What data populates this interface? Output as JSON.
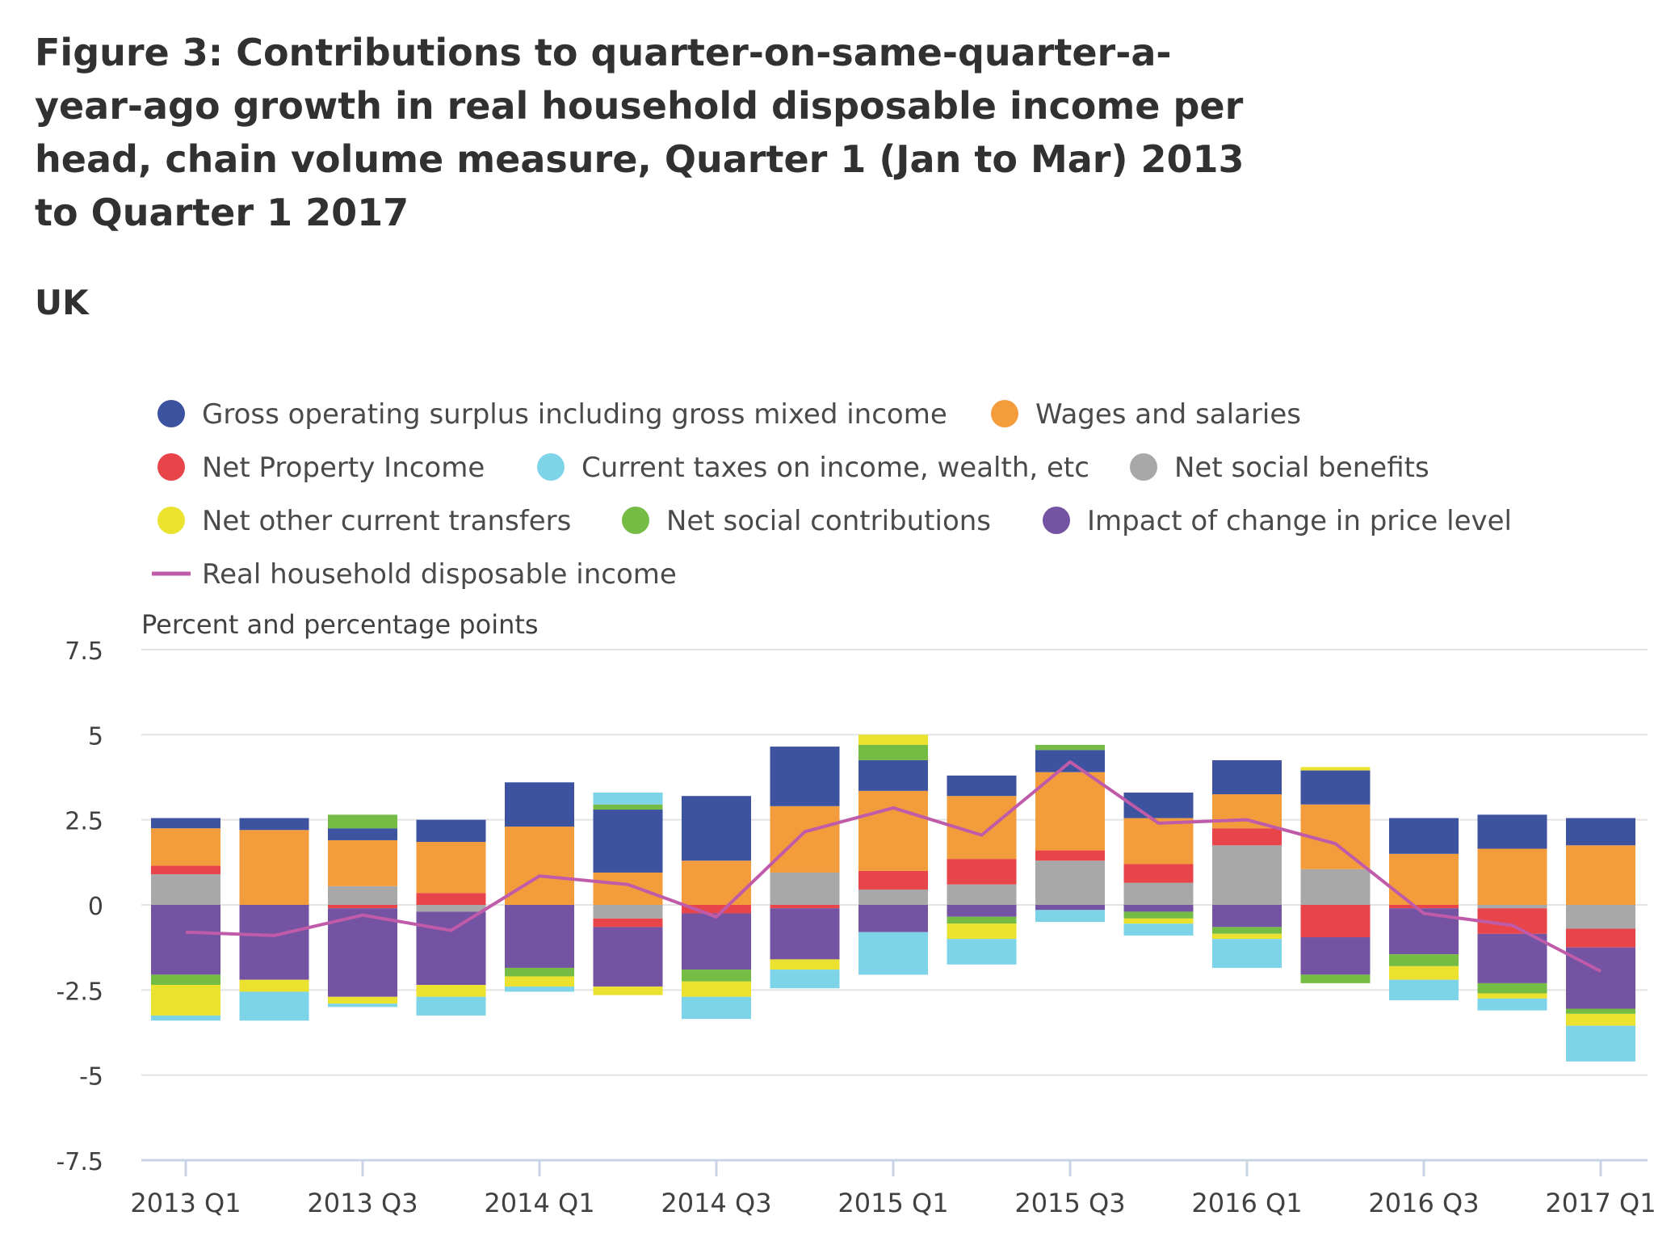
{
  "title": "Figure 3: Contributions to quarter-on-same-quarter-a-year-ago growth in real household disposable income per head, chain volume measure, Quarter 1 (Jan to Mar) 2013 to Quarter 1 2017",
  "subtitle": "UK",
  "chart_data": {
    "type": "bar",
    "stacked": true,
    "ylabel": "Percent and percentage points",
    "ylim": [
      -7.5,
      7.5
    ],
    "yticks": [
      7.5,
      5,
      2.5,
      0,
      -2.5,
      -5,
      -7.5
    ],
    "ytick_labels": [
      "7.5",
      "5",
      "2.5",
      "0",
      "-2.5",
      "-5",
      "-7.5"
    ],
    "categories": [
      "2013 Q1",
      "2013 Q2",
      "2013 Q3",
      "2013 Q4",
      "2014 Q1",
      "2014 Q2",
      "2014 Q3",
      "2014 Q4",
      "2015 Q1",
      "2015 Q2",
      "2015 Q3",
      "2015 Q4",
      "2016 Q1",
      "2016 Q2",
      "2016 Q3",
      "2016 Q4",
      "2017 Q1"
    ],
    "xtick_labels": [
      "2013 Q1",
      "2013 Q3",
      "2014 Q1",
      "2014 Q3",
      "2015 Q1",
      "2015 Q3",
      "2016 Q1",
      "2016 Q3",
      "2017 Q1"
    ],
    "series": [
      {
        "name": "Net social benefits",
        "color": "#a8a8a8",
        "values": [
          0.9,
          0,
          0.55,
          -0.2,
          0,
          -0.4,
          0,
          0.95,
          0.45,
          0.6,
          1.3,
          0.65,
          1.75,
          1.05,
          0,
          -0.1,
          -0.7
        ]
      },
      {
        "name": "Net Property Income",
        "color": "#e8454a",
        "values": [
          0.25,
          0,
          -0.1,
          0.35,
          0,
          -0.25,
          -0.25,
          -0.1,
          0.55,
          0.75,
          0.3,
          0.55,
          0.5,
          -0.95,
          -0.1,
          -0.75,
          -0.55
        ]
      },
      {
        "name": "Wages and salaries",
        "color": "#f39c3c",
        "values": [
          1.1,
          2.2,
          1.35,
          1.5,
          2.3,
          0.95,
          1.3,
          1.95,
          2.35,
          1.85,
          2.3,
          1.35,
          1.0,
          1.9,
          1.5,
          1.65,
          1.75
        ]
      },
      {
        "name": "Gross operating surplus including gross mixed income",
        "color": "#3d53a0",
        "values": [
          0.3,
          0.35,
          0.35,
          0.65,
          1.3,
          1.85,
          1.9,
          1.75,
          0.9,
          0.6,
          0.65,
          0.75,
          1.0,
          1.0,
          1.05,
          1.0,
          0.8
        ]
      },
      {
        "name": "Impact of change in price level",
        "color": "#7453a3",
        "values": [
          -2.05,
          -2.2,
          -2.6,
          -2.15,
          -1.85,
          -1.75,
          -1.65,
          -1.5,
          -0.8,
          -0.35,
          -0.15,
          -0.2,
          -0.65,
          -1.1,
          -1.35,
          -1.45,
          -1.8
        ]
      },
      {
        "name": "Net social contributions",
        "color": "#75bc45",
        "values": [
          -0.3,
          0,
          0.4,
          0,
          -0.25,
          0.15,
          -0.35,
          0,
          0.45,
          -0.2,
          0.15,
          -0.2,
          -0.2,
          -0.25,
          -0.35,
          -0.3,
          -0.15
        ]
      },
      {
        "name": "Net other current transfers",
        "color": "#ebe22f",
        "values": [
          -0.9,
          -0.35,
          -0.2,
          -0.35,
          -0.3,
          -0.25,
          -0.45,
          -0.3,
          0.3,
          -0.45,
          0,
          -0.15,
          -0.15,
          0.1,
          -0.4,
          -0.15,
          -0.35
        ]
      },
      {
        "name": "Current taxes on income, wealth, etc",
        "color": "#7dd4e8",
        "values": [
          -0.15,
          -0.85,
          -0.1,
          -0.55,
          -0.15,
          0.35,
          -0.65,
          -0.55,
          -1.25,
          -0.75,
          -0.35,
          -0.35,
          -0.85,
          0,
          -0.6,
          -0.35,
          -1.05
        ]
      }
    ],
    "line": {
      "name": "Real household disposable income",
      "color": "#bf5ba8",
      "values": [
        -0.8,
        -0.9,
        -0.3,
        -0.75,
        0.85,
        0.6,
        -0.35,
        2.15,
        2.85,
        2.05,
        4.2,
        2.4,
        2.5,
        1.8,
        -0.25,
        -0.6,
        -1.95
      ]
    },
    "legend": [
      {
        "label": "Gross operating surplus including gross mixed income",
        "color": "#3d53a0",
        "shape": "circle"
      },
      {
        "label": "Wages and salaries",
        "color": "#f39c3c",
        "shape": "circle"
      },
      {
        "label": "Net Property Income",
        "color": "#e8454a",
        "shape": "circle"
      },
      {
        "label": "Current taxes on income, wealth, etc",
        "color": "#7dd4e8",
        "shape": "circle"
      },
      {
        "label": "Net social benefits",
        "color": "#a8a8a8",
        "shape": "circle"
      },
      {
        "label": "Net other current transfers",
        "color": "#ebe22f",
        "shape": "circle"
      },
      {
        "label": "Net social contributions",
        "color": "#75bc45",
        "shape": "circle"
      },
      {
        "label": "Impact of change in price level",
        "color": "#7453a3",
        "shape": "circle"
      },
      {
        "label": "Real household disposable income",
        "color": "#bf5ba8",
        "shape": "line"
      }
    ]
  }
}
